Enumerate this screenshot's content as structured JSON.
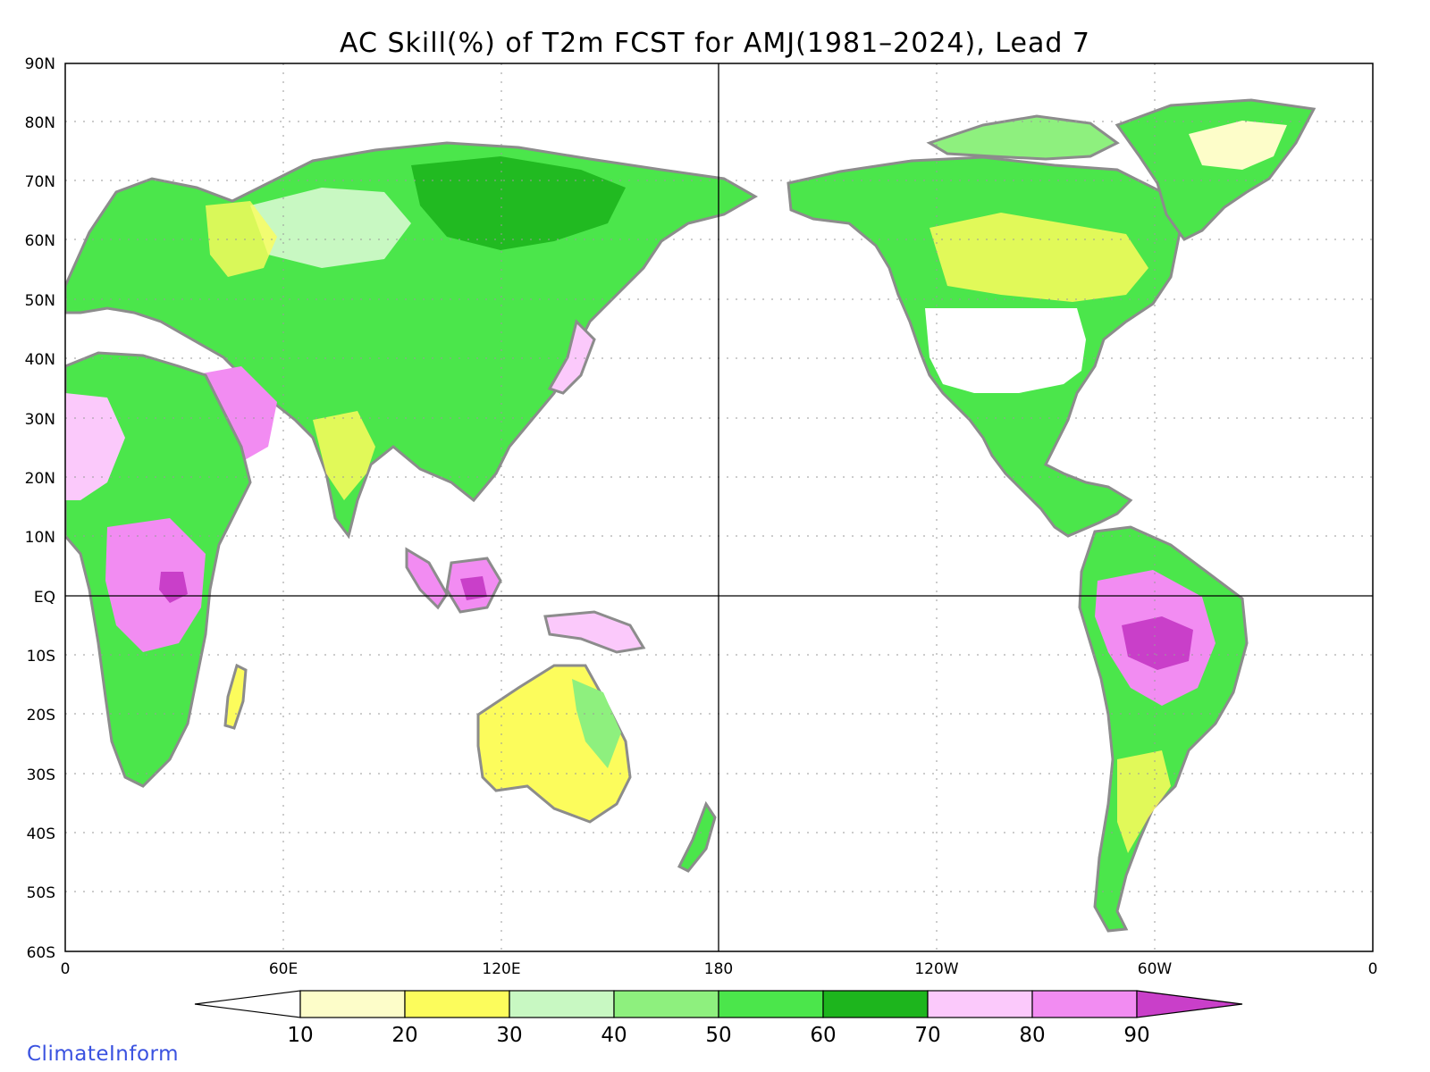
{
  "title": "AC Skill(%) of T2m FCST for AMJ(1981–2024), Lead 7",
  "credit": "ClimateInform",
  "axes": {
    "lat_labels": [
      "90N",
      "80N",
      "70N",
      "60N",
      "50N",
      "40N",
      "30N",
      "20N",
      "10N",
      "EQ",
      "10S",
      "20S",
      "30S",
      "40S",
      "50S",
      "60S"
    ],
    "lon_labels": [
      "0",
      "60E",
      "120E",
      "180",
      "120W",
      "60W",
      "0"
    ]
  },
  "colorbar": {
    "ticks": [
      "10",
      "20",
      "30",
      "40",
      "50",
      "60",
      "70",
      "80",
      "90"
    ],
    "colors": [
      "#ffffff",
      "#fdfdc9",
      "#fcfc5c",
      "#c8f8c2",
      "#8ef07e",
      "#4be64b",
      "#1db51d",
      "#fbc9fb",
      "#f28cf2",
      "#c93fc9"
    ]
  },
  "legend_levels": [
    10,
    20,
    30,
    40,
    50,
    60,
    70,
    80,
    90
  ],
  "land_outline_color": "#8c8c8c"
}
